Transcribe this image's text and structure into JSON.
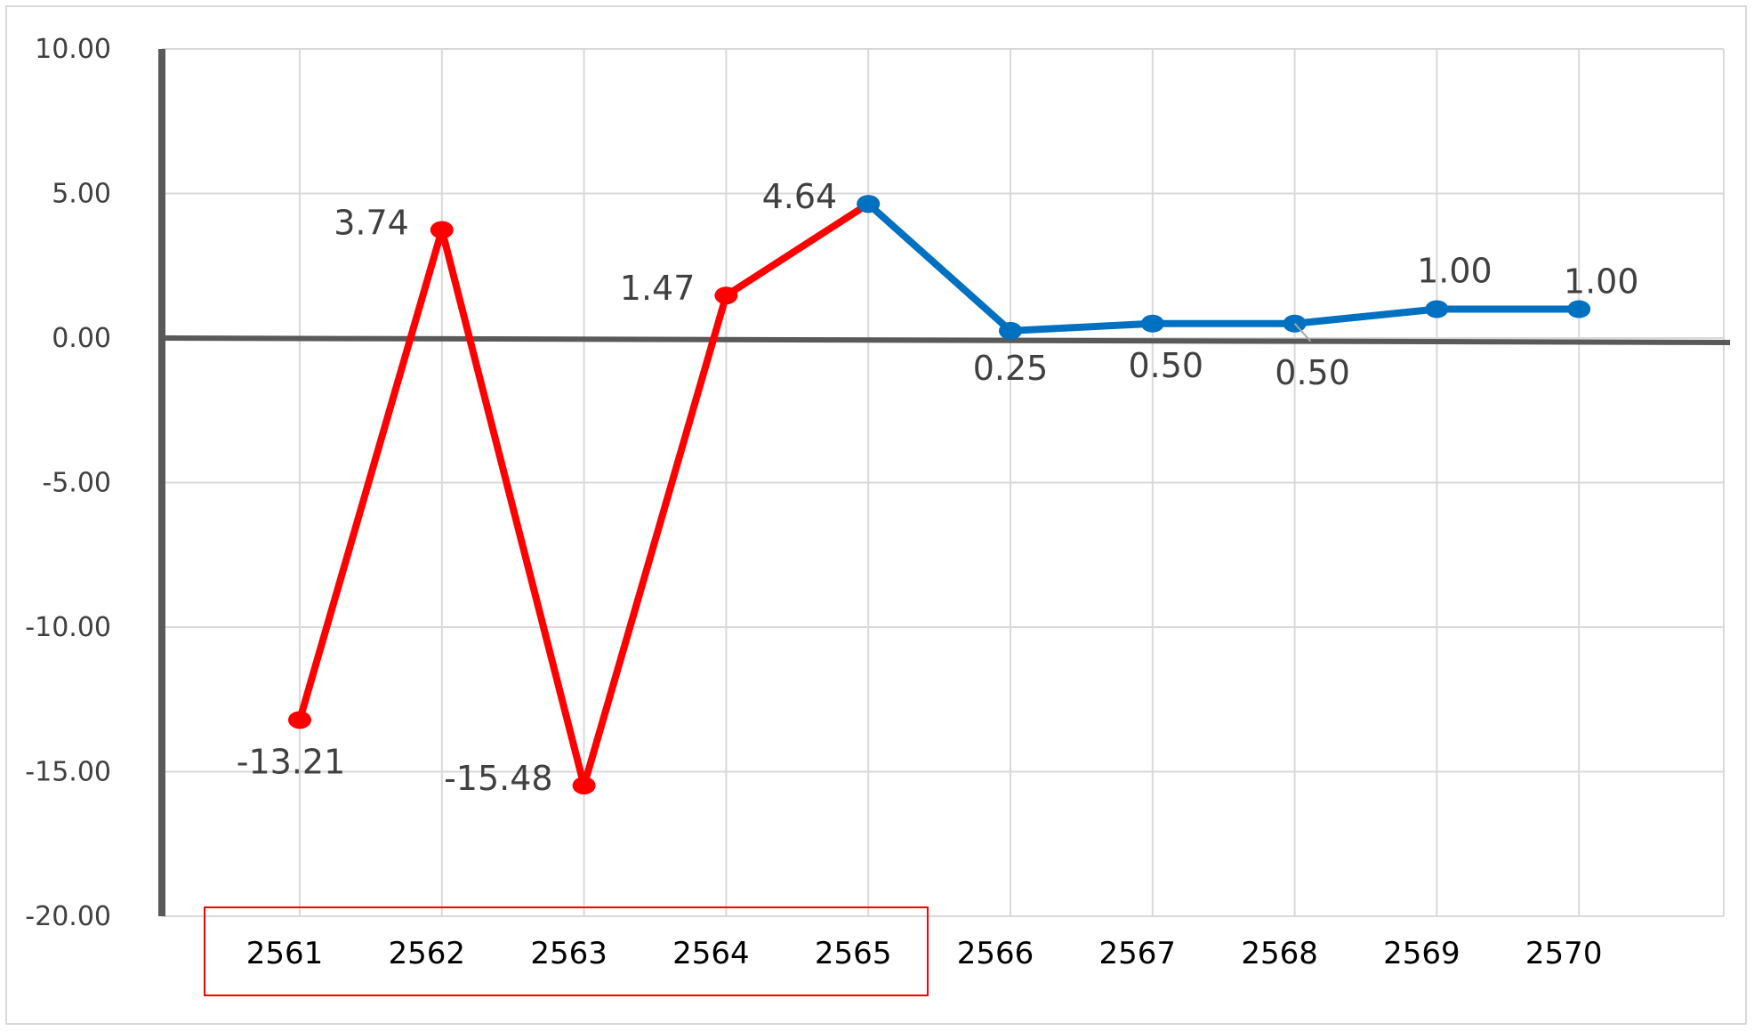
{
  "chart_data": {
    "type": "line",
    "categories": [
      "2561",
      "2562",
      "2563",
      "2564",
      "2565",
      "2566",
      "2567",
      "2568",
      "2569",
      "2570"
    ],
    "series": [
      {
        "segment": "actual",
        "color": "#ff0000",
        "points": [
          {
            "x": "2561",
            "y": -13.21,
            "label": "-13.21"
          },
          {
            "x": "2562",
            "y": 3.74,
            "label": "3.74"
          },
          {
            "x": "2563",
            "y": -15.48,
            "label": "-15.48"
          },
          {
            "x": "2564",
            "y": 1.47,
            "label": "1.47"
          },
          {
            "x": "2565",
            "y": 4.64,
            "label": "4.64"
          }
        ]
      },
      {
        "segment": "forecast",
        "color": "#0070c0",
        "points": [
          {
            "x": "2565",
            "y": 4.64,
            "label": ""
          },
          {
            "x": "2566",
            "y": 0.25,
            "label": "0.25"
          },
          {
            "x": "2567",
            "y": 0.5,
            "label": "0.50"
          },
          {
            "x": "2568",
            "y": 0.5,
            "label": "0.50"
          },
          {
            "x": "2569",
            "y": 1.0,
            "label": "1.00"
          },
          {
            "x": "2570",
            "y": 1.0,
            "label": "1.00"
          }
        ]
      }
    ],
    "ylim": [
      -20,
      10
    ],
    "yticks": [
      "10.00",
      "5.00",
      "0.00",
      "-5.00",
      "-10.00",
      "-15.00",
      "-20.00"
    ],
    "grid": true,
    "highlight_box": {
      "from": "2561",
      "to": "2565",
      "color": "#ff0000"
    },
    "axis_color": "#595959",
    "grid_color": "#d9d9d9"
  }
}
